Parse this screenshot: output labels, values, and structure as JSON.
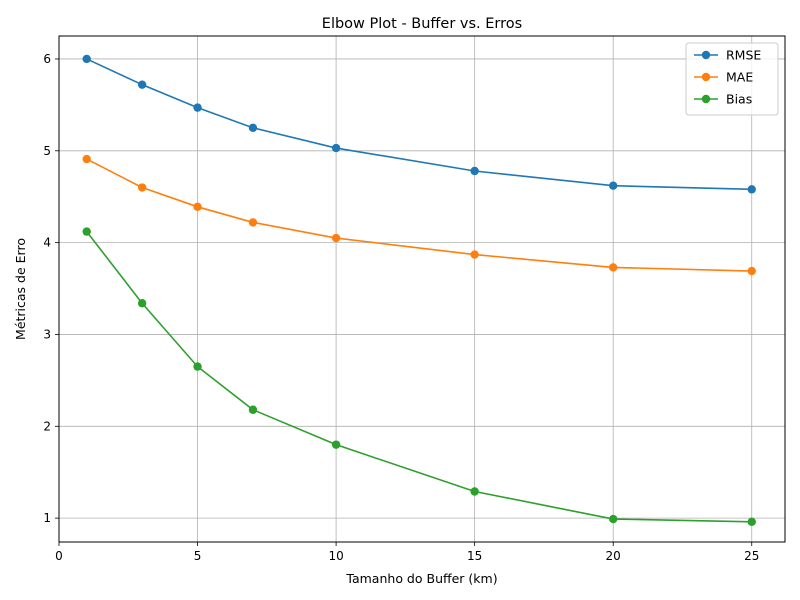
{
  "chart_data": {
    "type": "line",
    "title": "Elbow Plot - Buffer vs. Erros",
    "xlabel": "Tamanho do Buffer (km)",
    "ylabel": "Métricas de Erro",
    "x": [
      1,
      3,
      5,
      7,
      10,
      15,
      20,
      25
    ],
    "xlim": [
      0,
      26.2
    ],
    "ylim": [
      0.74,
      6.25
    ],
    "xticks": [
      0,
      5,
      10,
      15,
      20,
      25
    ],
    "yticks": [
      1,
      2,
      3,
      4,
      5,
      6
    ],
    "grid": true,
    "legend_position": "top-right",
    "series": [
      {
        "name": "RMSE",
        "color": "#1f77b4",
        "values": [
          6.0,
          5.72,
          5.47,
          5.25,
          5.03,
          4.78,
          4.62,
          4.58
        ]
      },
      {
        "name": "MAE",
        "color": "#ff7f0e",
        "values": [
          4.91,
          4.6,
          4.39,
          4.22,
          4.05,
          3.87,
          3.73,
          3.69
        ]
      },
      {
        "name": "Bias",
        "color": "#2ca02c",
        "values": [
          4.12,
          3.34,
          2.65,
          2.18,
          1.8,
          1.29,
          0.99,
          0.96
        ]
      }
    ]
  }
}
